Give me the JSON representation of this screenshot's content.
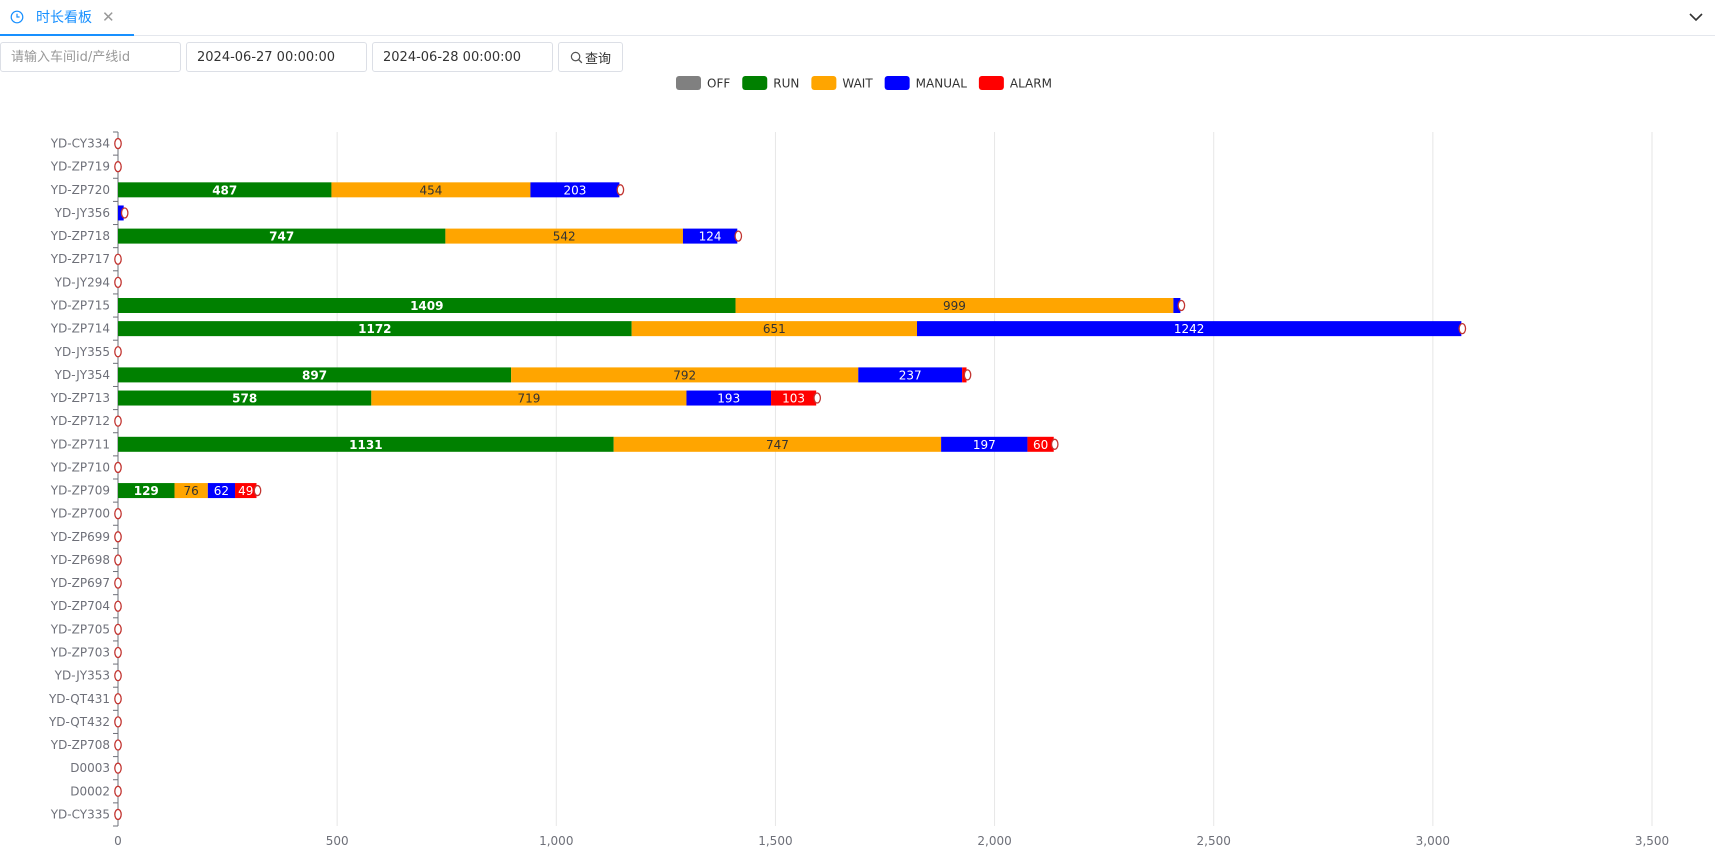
{
  "tab": {
    "label": "时长看板",
    "icon": "clock-icon"
  },
  "filters": {
    "workshop_placeholder": "请输入车间id/产线id",
    "workshop_value": "",
    "start_time": "2024-06-27 00:00:00",
    "end_time": "2024-06-28 00:00:00",
    "query_label": "查询"
  },
  "chart_data": {
    "type": "bar",
    "orientation": "horizontal",
    "stacked": true,
    "xlim": [
      0,
      3500
    ],
    "xticks": [
      0,
      500,
      1000,
      1500,
      2000,
      2500,
      3000,
      3500
    ],
    "xtick_labels": [
      "0",
      "500",
      "1,000",
      "1,500",
      "2,000",
      "2,500",
      "3,000",
      "3,500"
    ],
    "grid": true,
    "legend_position": "top-center",
    "categories": [
      "YD-CY334",
      "YD-ZP719",
      "YD-ZP720",
      "YD-JY356",
      "YD-ZP718",
      "YD-ZP717",
      "YD-JY294",
      "YD-ZP715",
      "YD-ZP714",
      "YD-JY355",
      "YD-JY354",
      "YD-ZP713",
      "YD-ZP712",
      "YD-ZP711",
      "YD-ZP710",
      "YD-ZP709",
      "YD-ZP700",
      "YD-ZP699",
      "YD-ZP698",
      "YD-ZP697",
      "YD-ZP704",
      "YD-ZP705",
      "YD-ZP703",
      "YD-JY353",
      "YD-QT431",
      "YD-QT432",
      "YD-ZP708",
      "D0003",
      "D0002",
      "YD-CY335"
    ],
    "series": [
      {
        "name": "OFF",
        "color": "#808080",
        "values": [
          0,
          0,
          0,
          0,
          0,
          0,
          0,
          0,
          0,
          0,
          0,
          0,
          0,
          0,
          0,
          0,
          0,
          0,
          0,
          0,
          0,
          0,
          0,
          0,
          0,
          0,
          0,
          0,
          0,
          0
        ]
      },
      {
        "name": "RUN",
        "color": "#008000",
        "values": [
          0,
          0,
          487,
          0,
          747,
          0,
          0,
          1409,
          1172,
          0,
          897,
          578,
          0,
          1131,
          0,
          129,
          0,
          0,
          0,
          0,
          0,
          0,
          0,
          0,
          0,
          0,
          0,
          0,
          0,
          0
        ]
      },
      {
        "name": "WAIT",
        "color": "#ffa500",
        "values": [
          0,
          0,
          454,
          0,
          542,
          0,
          0,
          999,
          651,
          0,
          792,
          719,
          0,
          747,
          0,
          76,
          0,
          0,
          0,
          0,
          0,
          0,
          0,
          0,
          0,
          0,
          0,
          0,
          0,
          0
        ]
      },
      {
        "name": "MANUAL",
        "color": "#0000ff",
        "values": [
          0,
          0,
          203,
          13,
          124,
          0,
          0,
          16,
          1242,
          0,
          237,
          193,
          0,
          197,
          0,
          62,
          0,
          0,
          0,
          0,
          0,
          0,
          0,
          0,
          0,
          0,
          0,
          0,
          0,
          0
        ]
      },
      {
        "name": "ALARM",
        "color": "#ff0000",
        "values": [
          0,
          0,
          0,
          0,
          0,
          0,
          0,
          0,
          0,
          0,
          10,
          103,
          0,
          60,
          0,
          49,
          0,
          0,
          0,
          0,
          0,
          0,
          0,
          0,
          0,
          0,
          0,
          0,
          0,
          0
        ]
      }
    ]
  }
}
